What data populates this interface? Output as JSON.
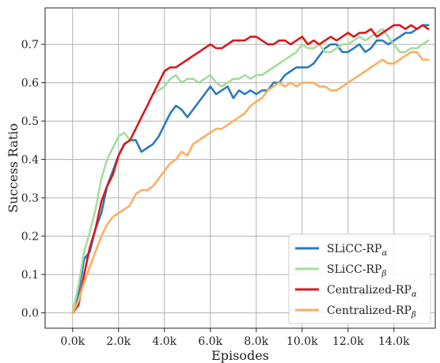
{
  "chart_data": {
    "type": "line",
    "xlabel": "Episodes",
    "ylabel": "Success Ratio",
    "xlim": [
      -1200,
      15800
    ],
    "ylim": [
      -0.04,
      0.795
    ],
    "x_ticks": [
      0,
      2000,
      4000,
      6000,
      8000,
      10000,
      12000,
      14000
    ],
    "x_tick_labels": [
      "0.0k",
      "2.0k",
      "4.0k",
      "6.0k",
      "8.0k",
      "10.0k",
      "12.0k",
      "14.0k"
    ],
    "y_ticks": [
      0.0,
      0.1,
      0.2,
      0.3,
      0.4,
      0.5,
      0.6,
      0.7
    ],
    "y_tick_labels": [
      "0.0",
      "0.1",
      "0.2",
      "0.3",
      "0.4",
      "0.5",
      "0.6",
      "0.7"
    ],
    "grid": true,
    "legend_position": "bottom-right",
    "series": [
      {
        "name": "SLiCC-RP",
        "subscript": "α",
        "color": "#2b7bba",
        "points": [
          [
            0,
            0.0
          ],
          [
            250,
            0.05
          ],
          [
            500,
            0.14
          ],
          [
            750,
            0.16
          ],
          [
            1000,
            0.22
          ],
          [
            1250,
            0.26
          ],
          [
            1500,
            0.33
          ],
          [
            1750,
            0.37
          ],
          [
            2000,
            0.41
          ],
          [
            2250,
            0.44
          ],
          [
            2500,
            0.45
          ],
          [
            2750,
            0.45
          ],
          [
            3000,
            0.42
          ],
          [
            3250,
            0.43
          ],
          [
            3500,
            0.44
          ],
          [
            3750,
            0.46
          ],
          [
            4000,
            0.49
          ],
          [
            4250,
            0.52
          ],
          [
            4500,
            0.54
          ],
          [
            4750,
            0.53
          ],
          [
            5000,
            0.51
          ],
          [
            5250,
            0.53
          ],
          [
            5500,
            0.55
          ],
          [
            5750,
            0.57
          ],
          [
            6000,
            0.59
          ],
          [
            6250,
            0.57
          ],
          [
            6500,
            0.58
          ],
          [
            6750,
            0.59
          ],
          [
            7000,
            0.56
          ],
          [
            7250,
            0.58
          ],
          [
            7500,
            0.57
          ],
          [
            7750,
            0.58
          ],
          [
            8000,
            0.57
          ],
          [
            8250,
            0.58
          ],
          [
            8500,
            0.58
          ],
          [
            8750,
            0.6
          ],
          [
            9000,
            0.6
          ],
          [
            9250,
            0.62
          ],
          [
            9500,
            0.63
          ],
          [
            9750,
            0.64
          ],
          [
            10000,
            0.64
          ],
          [
            10250,
            0.64
          ],
          [
            10500,
            0.65
          ],
          [
            10750,
            0.67
          ],
          [
            11000,
            0.69
          ],
          [
            11250,
            0.7
          ],
          [
            11500,
            0.7
          ],
          [
            11750,
            0.68
          ],
          [
            12000,
            0.68
          ],
          [
            12250,
            0.69
          ],
          [
            12500,
            0.7
          ],
          [
            12750,
            0.68
          ],
          [
            13000,
            0.69
          ],
          [
            13250,
            0.71
          ],
          [
            13500,
            0.71
          ],
          [
            13750,
            0.7
          ],
          [
            14000,
            0.71
          ],
          [
            14250,
            0.72
          ],
          [
            14500,
            0.73
          ],
          [
            14750,
            0.73
          ],
          [
            15000,
            0.74
          ],
          [
            15250,
            0.75
          ],
          [
            15500,
            0.75
          ]
        ]
      },
      {
        "name": "SLiCC-RP",
        "subscript": "β",
        "color": "#a6dba0",
        "points": [
          [
            0,
            0.0
          ],
          [
            250,
            0.07
          ],
          [
            500,
            0.16
          ],
          [
            750,
            0.21
          ],
          [
            1000,
            0.27
          ],
          [
            1250,
            0.35
          ],
          [
            1500,
            0.4
          ],
          [
            1750,
            0.43
          ],
          [
            2000,
            0.46
          ],
          [
            2250,
            0.47
          ],
          [
            2500,
            0.45
          ],
          [
            3500,
            0.57
          ],
          [
            3750,
            0.58
          ],
          [
            4000,
            0.59
          ],
          [
            4250,
            0.61
          ],
          [
            4500,
            0.62
          ],
          [
            4750,
            0.6
          ],
          [
            5000,
            0.61
          ],
          [
            5250,
            0.61
          ],
          [
            5500,
            0.6
          ],
          [
            5750,
            0.61
          ],
          [
            6000,
            0.62
          ],
          [
            6250,
            0.6
          ],
          [
            6500,
            0.59
          ],
          [
            6750,
            0.6
          ],
          [
            7000,
            0.61
          ],
          [
            7250,
            0.61
          ],
          [
            7500,
            0.62
          ],
          [
            7750,
            0.61
          ],
          [
            8000,
            0.62
          ],
          [
            8250,
            0.62
          ],
          [
            8500,
            0.63
          ],
          [
            8750,
            0.64
          ],
          [
            9000,
            0.65
          ],
          [
            9250,
            0.66
          ],
          [
            9500,
            0.67
          ],
          [
            9750,
            0.68
          ],
          [
            10000,
            0.7
          ],
          [
            10250,
            0.69
          ],
          [
            10500,
            0.69
          ],
          [
            10750,
            0.7
          ],
          [
            11000,
            0.68
          ],
          [
            11250,
            0.68
          ],
          [
            11500,
            0.69
          ],
          [
            11750,
            0.7
          ],
          [
            12000,
            0.7
          ],
          [
            12250,
            0.71
          ],
          [
            12500,
            0.72
          ],
          [
            12750,
            0.71
          ],
          [
            13000,
            0.72
          ],
          [
            13250,
            0.73
          ],
          [
            13500,
            0.74
          ],
          [
            13750,
            0.72
          ],
          [
            14000,
            0.7
          ],
          [
            14250,
            0.68
          ],
          [
            14500,
            0.68
          ],
          [
            14750,
            0.69
          ],
          [
            15000,
            0.69
          ],
          [
            15250,
            0.7
          ],
          [
            15500,
            0.71
          ]
        ]
      },
      {
        "name": "Centralized-RP",
        "subscript": "α",
        "color": "#d7191c",
        "points": [
          [
            0,
            0.0
          ],
          [
            250,
            0.02
          ],
          [
            500,
            0.1
          ],
          [
            750,
            0.17
          ],
          [
            1000,
            0.22
          ],
          [
            1250,
            0.29
          ],
          [
            1500,
            0.33
          ],
          [
            1750,
            0.36
          ],
          [
            2000,
            0.41
          ],
          [
            2250,
            0.44
          ],
          [
            2500,
            0.45
          ],
          [
            2750,
            0.48
          ],
          [
            3000,
            0.51
          ],
          [
            3250,
            0.54
          ],
          [
            3500,
            0.57
          ],
          [
            3750,
            0.6
          ],
          [
            4000,
            0.63
          ],
          [
            4250,
            0.64
          ],
          [
            4500,
            0.64
          ],
          [
            4750,
            0.65
          ],
          [
            5000,
            0.66
          ],
          [
            5250,
            0.67
          ],
          [
            5500,
            0.68
          ],
          [
            5750,
            0.69
          ],
          [
            6000,
            0.7
          ],
          [
            6250,
            0.69
          ],
          [
            6500,
            0.69
          ],
          [
            6750,
            0.7
          ],
          [
            7000,
            0.71
          ],
          [
            7250,
            0.71
          ],
          [
            7500,
            0.71
          ],
          [
            7750,
            0.72
          ],
          [
            8000,
            0.72
          ],
          [
            8250,
            0.71
          ],
          [
            8500,
            0.7
          ],
          [
            8750,
            0.7
          ],
          [
            9000,
            0.71
          ],
          [
            9250,
            0.71
          ],
          [
            9500,
            0.7
          ],
          [
            9750,
            0.71
          ],
          [
            10000,
            0.72
          ],
          [
            10250,
            0.7
          ],
          [
            10500,
            0.71
          ],
          [
            10750,
            0.7
          ],
          [
            11000,
            0.71
          ],
          [
            11250,
            0.72
          ],
          [
            11500,
            0.71
          ],
          [
            11750,
            0.72
          ],
          [
            12000,
            0.73
          ],
          [
            12250,
            0.72
          ],
          [
            12500,
            0.73
          ],
          [
            12750,
            0.73
          ],
          [
            13000,
            0.74
          ],
          [
            13250,
            0.72
          ],
          [
            13500,
            0.73
          ],
          [
            13750,
            0.74
          ],
          [
            14000,
            0.75
          ],
          [
            14250,
            0.75
          ],
          [
            14500,
            0.74
          ],
          [
            14750,
            0.75
          ],
          [
            15000,
            0.74
          ],
          [
            15250,
            0.75
          ],
          [
            15500,
            0.74
          ]
        ]
      },
      {
        "name": "Centralized-RP",
        "subscript": "β",
        "color": "#fdae61",
        "points": [
          [
            0,
            0.0
          ],
          [
            250,
            0.03
          ],
          [
            500,
            0.08
          ],
          [
            750,
            0.12
          ],
          [
            1000,
            0.16
          ],
          [
            1250,
            0.2
          ],
          [
            1500,
            0.23
          ],
          [
            1750,
            0.25
          ],
          [
            2000,
            0.26
          ],
          [
            2250,
            0.27
          ],
          [
            2500,
            0.28
          ],
          [
            2750,
            0.31
          ],
          [
            3000,
            0.32
          ],
          [
            3250,
            0.32
          ],
          [
            3500,
            0.33
          ],
          [
            3750,
            0.35
          ],
          [
            4000,
            0.37
          ],
          [
            4250,
            0.39
          ],
          [
            4500,
            0.4
          ],
          [
            4750,
            0.42
          ],
          [
            5000,
            0.41
          ],
          [
            5250,
            0.44
          ],
          [
            5500,
            0.45
          ],
          [
            5750,
            0.46
          ],
          [
            6000,
            0.47
          ],
          [
            6250,
            0.48
          ],
          [
            6500,
            0.48
          ],
          [
            6750,
            0.49
          ],
          [
            7000,
            0.5
          ],
          [
            7250,
            0.51
          ],
          [
            7500,
            0.52
          ],
          [
            7750,
            0.54
          ],
          [
            8000,
            0.55
          ],
          [
            8250,
            0.56
          ],
          [
            8500,
            0.58
          ],
          [
            8750,
            0.59
          ],
          [
            9000,
            0.6
          ],
          [
            9250,
            0.59
          ],
          [
            9500,
            0.6
          ],
          [
            9750,
            0.59
          ],
          [
            10000,
            0.6
          ],
          [
            10250,
            0.6
          ],
          [
            10500,
            0.6
          ],
          [
            10750,
            0.59
          ],
          [
            11000,
            0.59
          ],
          [
            11250,
            0.58
          ],
          [
            11500,
            0.58
          ],
          [
            11750,
            0.59
          ],
          [
            12000,
            0.6
          ],
          [
            12250,
            0.61
          ],
          [
            12500,
            0.62
          ],
          [
            12750,
            0.63
          ],
          [
            13000,
            0.64
          ],
          [
            13250,
            0.65
          ],
          [
            13500,
            0.66
          ],
          [
            13750,
            0.65
          ],
          [
            14000,
            0.65
          ],
          [
            14250,
            0.66
          ],
          [
            14500,
            0.67
          ],
          [
            14750,
            0.68
          ],
          [
            15000,
            0.68
          ],
          [
            15250,
            0.66
          ],
          [
            15500,
            0.66
          ]
        ]
      }
    ]
  }
}
